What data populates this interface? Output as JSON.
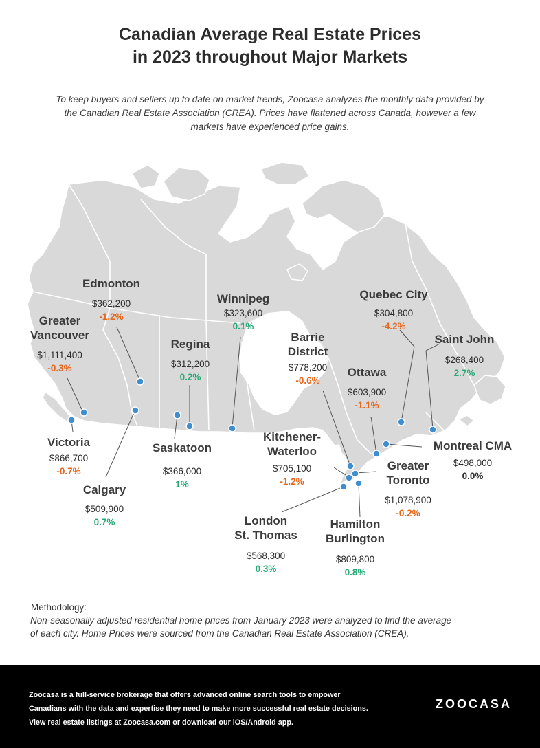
{
  "title_lines": [
    "Canadian Average Real Estate Prices",
    "in 2023 throughout Major Markets"
  ],
  "intro_lines": [
    "To keep buyers and sellers up to date on market trends, Zoocasa analyzes the monthly data provided by",
    "the Canadian Real Estate Association (CREA). Prices have flattened across Canada, however a few",
    "markets have experienced price gains."
  ],
  "colors": {
    "land": "#d9d9d9",
    "border": "#ffffff",
    "marker": "#3f8fd0",
    "negative": "#e8661c",
    "positive": "#2aa876",
    "footer_bg": "#000000"
  },
  "cities": [
    {
      "id": "edmonton",
      "name_lines": [
        "Edmonton"
      ],
      "price": "$362,200",
      "change": "-1.2%",
      "trend": "neg"
    },
    {
      "id": "greater-vancouver",
      "name_lines": [
        "Greater",
        "Vancouver"
      ],
      "price": "$1,111,400",
      "change": "-0.3%",
      "trend": "neg"
    },
    {
      "id": "victoria",
      "name_lines": [
        "Victoria"
      ],
      "price": "$866,700",
      "change": "-0.7%",
      "trend": "neg"
    },
    {
      "id": "calgary",
      "name_lines": [
        "Calgary"
      ],
      "price": "$509,900",
      "change": "0.7%",
      "trend": "pos"
    },
    {
      "id": "regina",
      "name_lines": [
        "Regina"
      ],
      "price": "$312,200",
      "change": "0.2%",
      "trend": "pos"
    },
    {
      "id": "saskatoon",
      "name_lines": [
        "Saskatoon"
      ],
      "price": "$366,000",
      "change": "1%",
      "trend": "pos"
    },
    {
      "id": "winnipeg",
      "name_lines": [
        "Winnipeg"
      ],
      "price": "$323,600",
      "change": "0.1%",
      "trend": "pos"
    },
    {
      "id": "barrie-district",
      "name_lines": [
        "Barrie",
        "District"
      ],
      "price": "$778,200",
      "change": "-0.6%",
      "trend": "neg"
    },
    {
      "id": "kitchener-waterloo",
      "name_lines": [
        "Kitchener-",
        "Waterloo"
      ],
      "price": "$705,100",
      "change": "-1.2%",
      "trend": "neg"
    },
    {
      "id": "london-st-thomas",
      "name_lines": [
        "London",
        "St. Thomas"
      ],
      "price": "$568,300",
      "change": "0.3%",
      "trend": "pos"
    },
    {
      "id": "hamilton-burlington",
      "name_lines": [
        "Hamilton",
        "Burlington"
      ],
      "price": "$809,800",
      "change": "0.8%",
      "trend": "pos"
    },
    {
      "id": "greater-toronto",
      "name_lines": [
        "Greater",
        "Toronto"
      ],
      "price": "$1,078,900",
      "change": "-0.2%",
      "trend": "neg"
    },
    {
      "id": "ottawa",
      "name_lines": [
        "Ottawa"
      ],
      "price": "$603,900",
      "change": "-1.1%",
      "trend": "neg"
    },
    {
      "id": "quebec-city",
      "name_lines": [
        "Quebec City"
      ],
      "price": "$304,800",
      "change": "-4.2%",
      "trend": "neg"
    },
    {
      "id": "saint-john",
      "name_lines": [
        "Saint John"
      ],
      "price": "$268,400",
      "change": "2.7%",
      "trend": "pos"
    },
    {
      "id": "montreal-cma",
      "name_lines": [
        "Montreal CMA"
      ],
      "price": "$498,000",
      "change": "0.0%",
      "trend": "zero"
    }
  ],
  "methodology": {
    "label": "Methodology:",
    "text_lines": [
      "Non-seasonally adjusted residential home prices from January 2023 were analyzed to find the average",
      "of each city. Home Prices were sourced from the Canadian Real Estate Association (CREA)."
    ]
  },
  "footer": {
    "lines": [
      "Zoocasa is a full-service brokerage that offers advanced online search tools to empower",
      "Canadians with the data and expertise they need to make more successful real estate decisions.",
      "View real estate listings at Zoocasa.com or download our iOS/Android app."
    ],
    "logo": "ZOOCASA"
  }
}
